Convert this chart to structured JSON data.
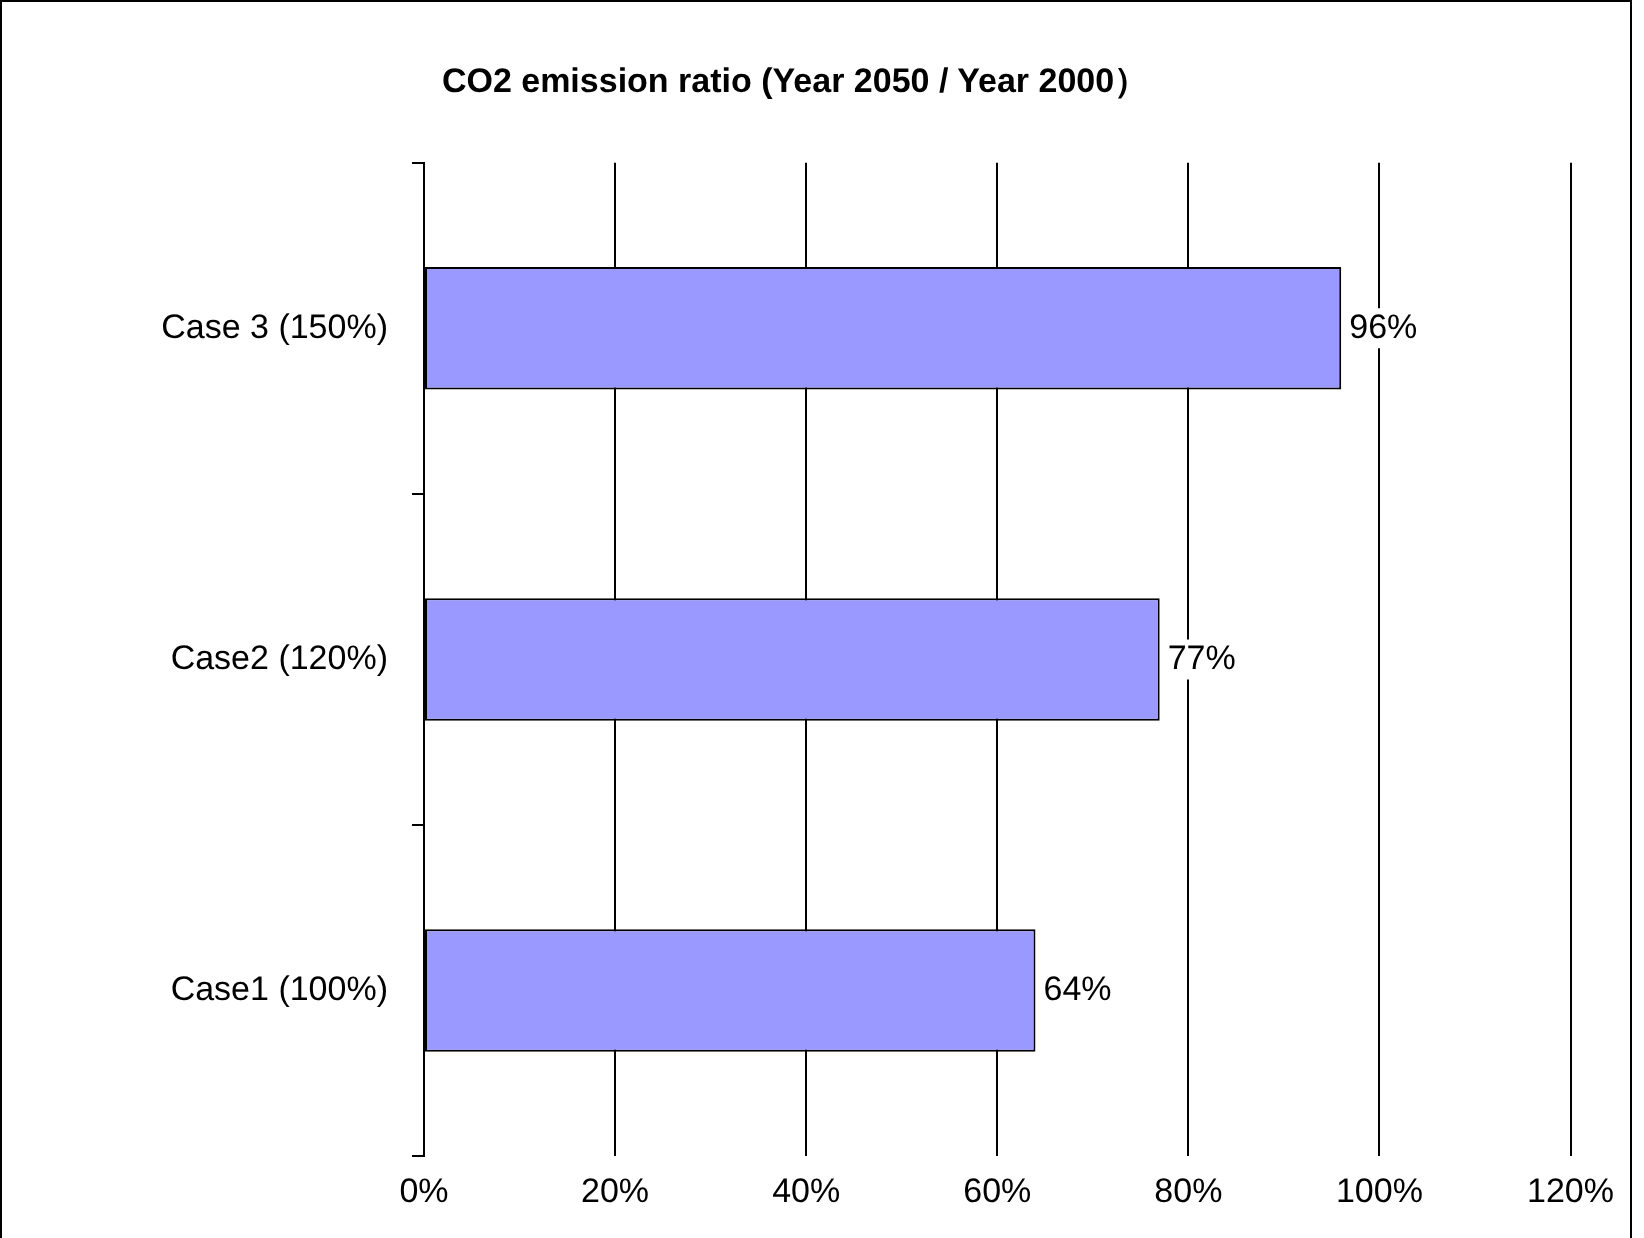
{
  "chart_data": {
    "type": "bar",
    "orientation": "horizontal",
    "title": "CO2 emission ratio (Year 2050 / Year 2000）",
    "categories": [
      "Case 3 (150%)",
      "Case2 (120%)",
      "Case1 (100%)"
    ],
    "values": [
      96,
      77,
      64
    ],
    "color": "#9999ff",
    "value_labels": [
      "96%",
      "77%",
      "64%"
    ],
    "xlim": [
      0,
      120
    ],
    "xticks": [
      {
        "value": 0,
        "label": "0%"
      },
      {
        "value": 20,
        "label": "20%"
      },
      {
        "value": 40,
        "label": "40%"
      },
      {
        "value": 60,
        "label": "60%"
      },
      {
        "value": 80,
        "label": "80%"
      },
      {
        "value": 100,
        "label": "100%"
      },
      {
        "value": 120,
        "label": "120%"
      }
    ],
    "grid": "x",
    "legend": false
  }
}
